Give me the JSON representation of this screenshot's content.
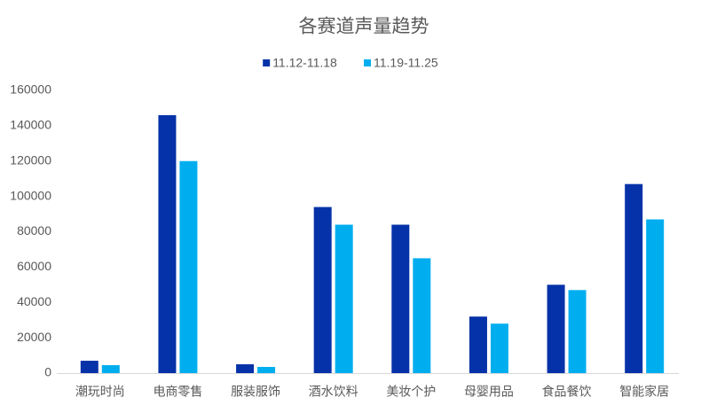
{
  "chart_data": {
    "type": "bar",
    "title": "各赛道声量趋势",
    "categories": [
      "潮玩时尚",
      "电商零售",
      "服装服饰",
      "酒水饮料",
      "美妆个护",
      "母婴用品",
      "食品餐饮",
      "智能家居"
    ],
    "series": [
      {
        "name": "11.12-11.18",
        "color": "#0532a8",
        "values": [
          7000,
          146000,
          5000,
          94000,
          84000,
          32000,
          50000,
          107000
        ]
      },
      {
        "name": "11.19-11.25",
        "color": "#00aeef",
        "values": [
          4500,
          120000,
          3500,
          84000,
          65000,
          28000,
          47000,
          87000
        ]
      }
    ],
    "ylim": [
      0,
      160000
    ],
    "yticks": [
      0,
      20000,
      40000,
      60000,
      80000,
      100000,
      120000,
      140000,
      160000
    ],
    "grid": false,
    "legend": "top"
  }
}
